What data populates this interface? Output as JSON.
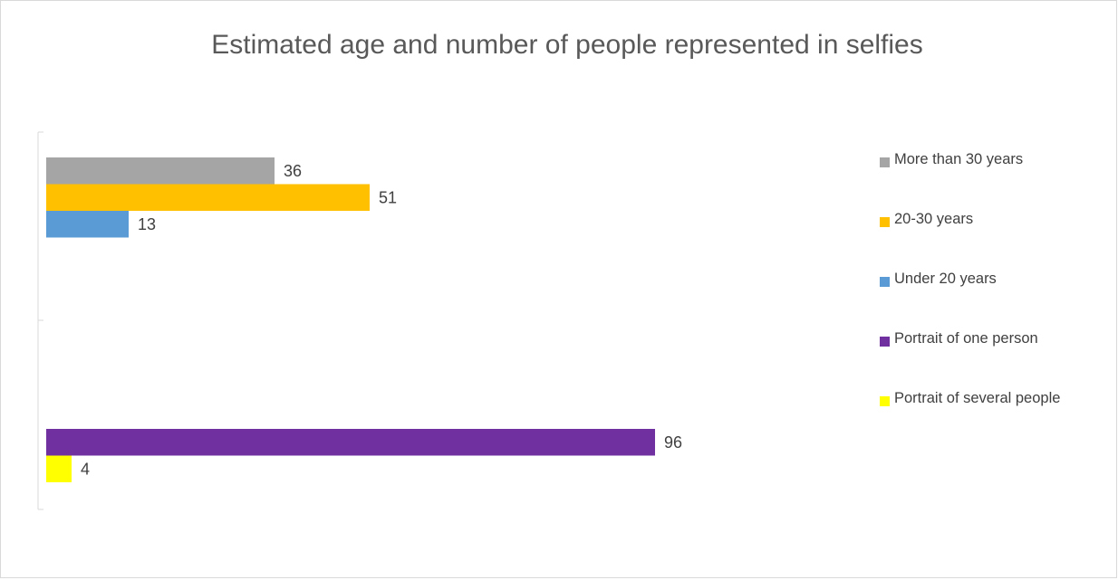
{
  "chart_data": {
    "type": "bar",
    "orientation": "horizontal",
    "title": "Estimated age and number of people represented in selfies",
    "xlabel": "",
    "ylabel": "",
    "xlim": [
      0,
      100
    ],
    "grid": false,
    "legend_position": "right",
    "groups": [
      {
        "bars": [
          {
            "series": "More than 30 years",
            "value": 36,
            "color": "#a5a5a5"
          },
          {
            "series": "20-30 years",
            "value": 51,
            "color": "#ffc000"
          },
          {
            "series": "Under 20 years",
            "value": 13,
            "color": "#5b9bd5"
          }
        ]
      },
      {
        "bars": [
          {
            "series": "Portrait of one person",
            "value": 96,
            "color": "#7030a0"
          },
          {
            "series": "Portrait of several people",
            "value": 4,
            "color": "#ffff00"
          }
        ]
      }
    ],
    "legend": [
      {
        "name": "More than 30 years",
        "color": "#a5a5a5"
      },
      {
        "name": "20-30 years",
        "color": "#ffc000"
      },
      {
        "name": "Under 20 years",
        "color": "#5b9bd5"
      },
      {
        "name": "Portrait of one person",
        "color": "#7030a0"
      },
      {
        "name": "Portrait of several people",
        "color": "#ffff00"
      }
    ]
  }
}
